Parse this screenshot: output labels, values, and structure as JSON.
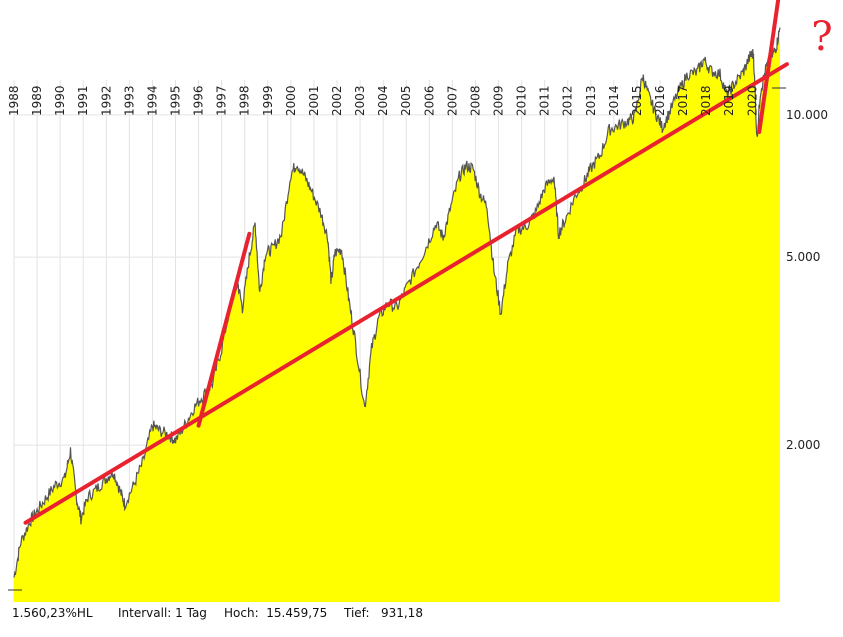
{
  "chart_data": {
    "type": "area",
    "x_ticks": [
      "1988",
      "1989",
      "1990",
      "1991",
      "1992",
      "1993",
      "1994",
      "1995",
      "1996",
      "1997",
      "1998",
      "1999",
      "2000",
      "2001",
      "2002",
      "2003",
      "2004",
      "2005",
      "2006",
      "2007",
      "2008",
      "2009",
      "2010",
      "2011",
      "2012",
      "2013",
      "2014",
      "2015",
      "2016",
      "2017",
      "2018",
      "2019",
      "2020"
    ],
    "y_ticks": [
      {
        "value": 2000,
        "label": "2.000"
      },
      {
        "value": 5000,
        "label": "5.000"
      },
      {
        "value": 10000,
        "label": "10.000"
      }
    ],
    "y_scale": "log",
    "ylim": [
      931.18,
      17500
    ],
    "xlim": [
      1988.0,
      2021.2
    ],
    "series": [
      {
        "values": [
          [
            1988.0,
            1050
          ],
          [
            1988.3,
            1250
          ],
          [
            1988.7,
            1380
          ],
          [
            1989.0,
            1450
          ],
          [
            1989.4,
            1550
          ],
          [
            1989.8,
            1650
          ],
          [
            1990.2,
            1700
          ],
          [
            1990.45,
            1950
          ],
          [
            1990.7,
            1550
          ],
          [
            1990.9,
            1400
          ],
          [
            1991.2,
            1550
          ],
          [
            1991.6,
            1620
          ],
          [
            1992.0,
            1700
          ],
          [
            1992.3,
            1760
          ],
          [
            1992.6,
            1600
          ],
          [
            1992.8,
            1500
          ],
          [
            1993.2,
            1650
          ],
          [
            1993.6,
            1850
          ],
          [
            1994.0,
            2200
          ],
          [
            1994.3,
            2150
          ],
          [
            1994.7,
            2100
          ],
          [
            1995.0,
            2050
          ],
          [
            1995.4,
            2200
          ],
          [
            1995.8,
            2400
          ],
          [
            1996.2,
            2550
          ],
          [
            1996.6,
            2700
          ],
          [
            1997.0,
            3200
          ],
          [
            1997.4,
            4000
          ],
          [
            1997.7,
            4400
          ],
          [
            1997.9,
            3900
          ],
          [
            1998.2,
            5000
          ],
          [
            1998.45,
            5900
          ],
          [
            1998.65,
            4200
          ],
          [
            1998.9,
            5100
          ],
          [
            1999.2,
            5200
          ],
          [
            1999.6,
            5600
          ],
          [
            2000.0,
            7500
          ],
          [
            2000.25,
            7900
          ],
          [
            2000.6,
            7400
          ],
          [
            2000.9,
            6900
          ],
          [
            2001.3,
            6200
          ],
          [
            2001.6,
            5500
          ],
          [
            2001.75,
            4400
          ],
          [
            2001.9,
            5100
          ],
          [
            2002.2,
            5200
          ],
          [
            2002.5,
            4100
          ],
          [
            2002.8,
            3300
          ],
          [
            2003.2,
            2400
          ],
          [
            2003.5,
            3200
          ],
          [
            2003.8,
            3700
          ],
          [
            2004.2,
            4000
          ],
          [
            2004.6,
            3900
          ],
          [
            2005.0,
            4300
          ],
          [
            2005.5,
            4800
          ],
          [
            2005.9,
            5300
          ],
          [
            2006.3,
            5900
          ],
          [
            2006.6,
            5500
          ],
          [
            2006.9,
            6300
          ],
          [
            2007.3,
            7400
          ],
          [
            2007.6,
            7800
          ],
          [
            2007.9,
            7700
          ],
          [
            2008.2,
            6800
          ],
          [
            2008.5,
            6400
          ],
          [
            2008.8,
            4700
          ],
          [
            2009.1,
            3800
          ],
          [
            2009.4,
            4800
          ],
          [
            2009.8,
            5700
          ],
          [
            2010.2,
            5800
          ],
          [
            2010.6,
            6200
          ],
          [
            2011.0,
            7000
          ],
          [
            2011.4,
            7400
          ],
          [
            2011.6,
            5600
          ],
          [
            2011.9,
            6000
          ],
          [
            2012.3,
            6700
          ],
          [
            2012.7,
            7200
          ],
          [
            2013.0,
            7700
          ],
          [
            2013.4,
            8200
          ],
          [
            2013.8,
            9300
          ],
          [
            2014.2,
            9500
          ],
          [
            2014.6,
            9700
          ],
          [
            2014.9,
            9900
          ],
          [
            2015.25,
            12100
          ],
          [
            2015.5,
            11000
          ],
          [
            2015.8,
            10100
          ],
          [
            2016.1,
            9400
          ],
          [
            2016.4,
            10100
          ],
          [
            2016.8,
            11200
          ],
          [
            2017.2,
            12200
          ],
          [
            2017.6,
            12300
          ],
          [
            2017.9,
            13100
          ],
          [
            2018.2,
            12400
          ],
          [
            2018.6,
            12200
          ],
          [
            2018.9,
            11000
          ],
          [
            2019.2,
            11600
          ],
          [
            2019.6,
            12300
          ],
          [
            2019.9,
            13300
          ],
          [
            2020.05,
            13500
          ],
          [
            2020.2,
            8900
          ],
          [
            2020.35,
            11200
          ],
          [
            2020.6,
            12600
          ],
          [
            2020.85,
            13300
          ],
          [
            2021.05,
            14000
          ],
          [
            2021.2,
            15300
          ]
        ]
      }
    ],
    "trend_lines": [
      {
        "from": [
          1988.5,
          1370
        ],
        "to": [
          2021.5,
          12800
        ]
      },
      {
        "from": [
          1996.0,
          2200
        ],
        "to": [
          1998.2,
          5600
        ]
      },
      {
        "from": [
          2020.3,
          9200
        ],
        "to": [
          2021.6,
          25500
        ]
      }
    ],
    "annotation": "?",
    "colors": {
      "fill": "#ffff00",
      "line": "#555555",
      "trend": "#e8232f",
      "annotation": "#e8232f"
    }
  },
  "footer": {
    "change": "1.560,23%HL",
    "interval": "Intervall: 1 Tag",
    "high": "Hoch:  15.459,75",
    "low": "Tief:   931,18"
  }
}
